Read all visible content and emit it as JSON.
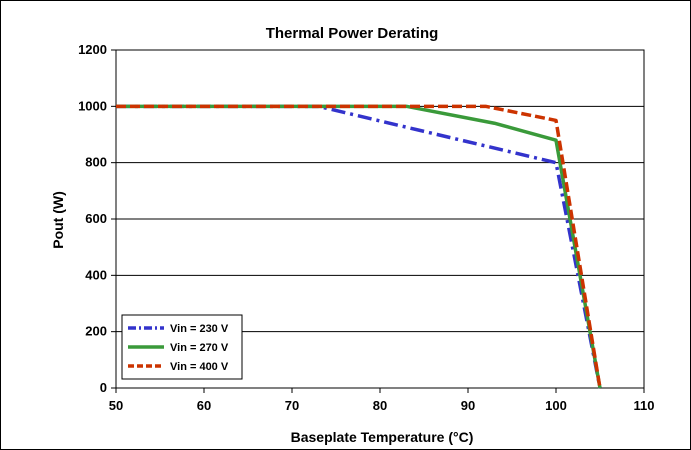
{
  "chart_data": {
    "type": "line",
    "title": "Thermal Power Derating",
    "xlabel": "Baseplate Temperature (°C)",
    "ylabel": "Pout (W)",
    "xlim": [
      50,
      110
    ],
    "ylim": [
      0,
      1200
    ],
    "x_ticks": [
      50,
      60,
      70,
      80,
      90,
      100,
      110
    ],
    "y_ticks": [
      0,
      200,
      400,
      600,
      800,
      1000,
      1200
    ],
    "grid": "horizontal",
    "legend_position": "bottom-left",
    "series": [
      {
        "name": "Vin = 230 V",
        "color": "#3333cc",
        "style": "dash-dot",
        "points": [
          [
            50,
            1000
          ],
          [
            73,
            1000
          ],
          [
            100,
            800
          ],
          [
            105,
            0
          ]
        ]
      },
      {
        "name": "Vin = 270 V",
        "color": "#3a9a3a",
        "style": "solid",
        "points": [
          [
            50,
            1000
          ],
          [
            83,
            1000
          ],
          [
            93,
            940
          ],
          [
            100,
            880
          ],
          [
            105,
            0
          ]
        ]
      },
      {
        "name": "Vin = 400 V",
        "color": "#cc3300",
        "style": "dashed",
        "points": [
          [
            50,
            1000
          ],
          [
            92,
            1000
          ],
          [
            100,
            950
          ],
          [
            105,
            0
          ]
        ]
      }
    ]
  }
}
